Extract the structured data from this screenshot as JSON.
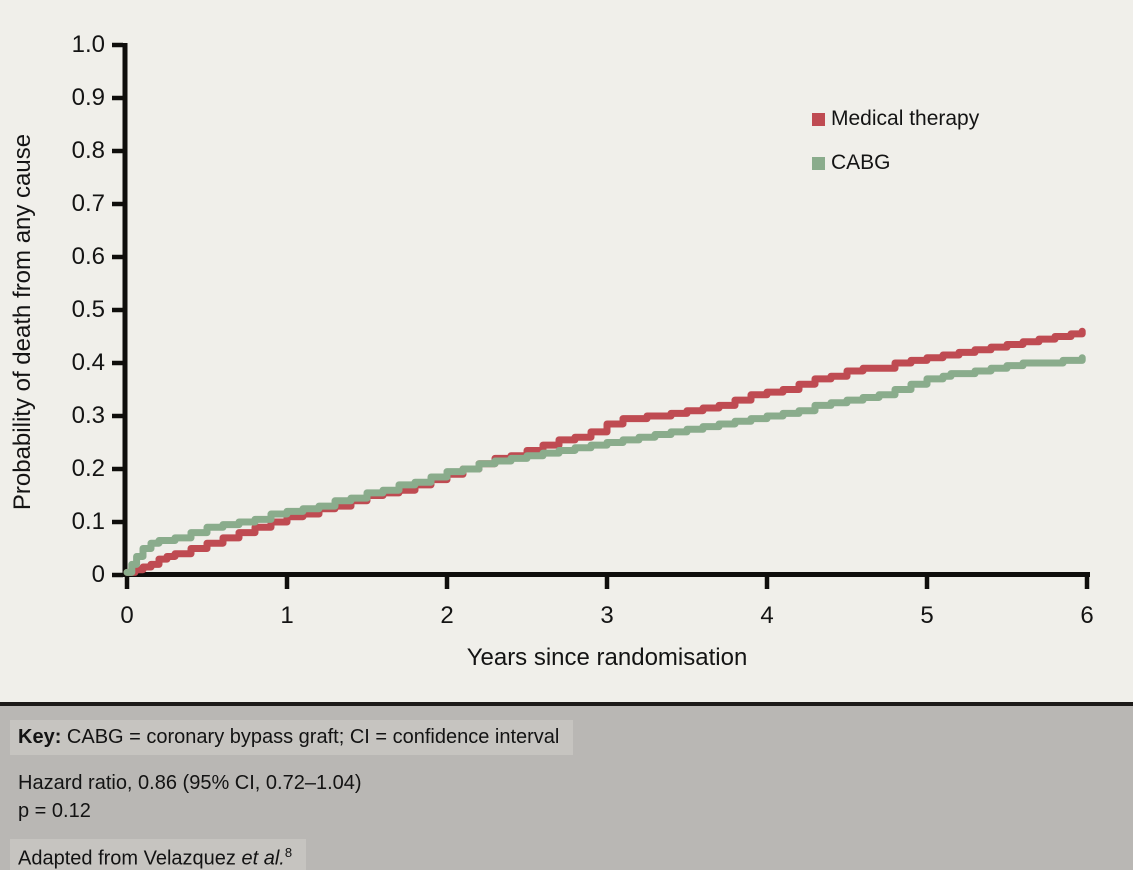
{
  "colors": {
    "background": "#f0efea",
    "footer_background": "#b9b7b4",
    "footer_highlight": "#c6c4c0",
    "divider": "#1c1a18",
    "axis": "#0f0e0c",
    "text": "#141414",
    "medical_therapy": "#bf4b52",
    "cabg": "#8aac8c"
  },
  "chart_data": {
    "type": "line",
    "subtype": "kaplan-meier-step",
    "title": "",
    "xlabel": "Years since randomisation",
    "ylabel": "Probability of death from any cause",
    "xlim": [
      0,
      6
    ],
    "ylim": [
      0,
      1.0
    ],
    "grid": false,
    "legend_position": "upper-right-inside",
    "xtick_labels": [
      "0",
      "1",
      "2",
      "3",
      "4",
      "5",
      "6"
    ],
    "xtick_values": [
      0,
      1,
      2,
      3,
      4,
      5,
      6
    ],
    "ytick_labels": [
      "1.0",
      "0.9",
      "0.8",
      "0.7",
      "0.6",
      "0.5",
      "0.4",
      "0.3",
      "0.2",
      "0.1",
      "0"
    ],
    "ytick_values": [
      1.0,
      0.9,
      0.8,
      0.7,
      0.6,
      0.5,
      0.4,
      0.3,
      0.2,
      0.1,
      0
    ],
    "series": [
      {
        "name": "Medical therapy",
        "color": "#bf4b52",
        "points": [
          [
            0,
            0.005
          ],
          [
            0.05,
            0.01
          ],
          [
            0.1,
            0.015
          ],
          [
            0.15,
            0.02
          ],
          [
            0.2,
            0.03
          ],
          [
            0.25,
            0.035
          ],
          [
            0.3,
            0.04
          ],
          [
            0.4,
            0.05
          ],
          [
            0.5,
            0.06
          ],
          [
            0.6,
            0.07
          ],
          [
            0.7,
            0.08
          ],
          [
            0.8,
            0.09
          ],
          [
            0.9,
            0.1
          ],
          [
            1.0,
            0.11
          ],
          [
            1.1,
            0.115
          ],
          [
            1.2,
            0.125
          ],
          [
            1.3,
            0.13
          ],
          [
            1.4,
            0.14
          ],
          [
            1.5,
            0.15
          ],
          [
            1.6,
            0.155
          ],
          [
            1.7,
            0.16
          ],
          [
            1.8,
            0.17
          ],
          [
            1.9,
            0.18
          ],
          [
            2.0,
            0.19
          ],
          [
            2.1,
            0.2
          ],
          [
            2.2,
            0.21
          ],
          [
            2.3,
            0.22
          ],
          [
            2.4,
            0.225
          ],
          [
            2.5,
            0.235
          ],
          [
            2.6,
            0.245
          ],
          [
            2.7,
            0.255
          ],
          [
            2.8,
            0.26
          ],
          [
            2.9,
            0.27
          ],
          [
            3.0,
            0.285
          ],
          [
            3.1,
            0.295
          ],
          [
            3.25,
            0.3
          ],
          [
            3.4,
            0.305
          ],
          [
            3.5,
            0.31
          ],
          [
            3.6,
            0.315
          ],
          [
            3.7,
            0.32
          ],
          [
            3.8,
            0.33
          ],
          [
            3.9,
            0.34
          ],
          [
            4.0,
            0.345
          ],
          [
            4.1,
            0.35
          ],
          [
            4.2,
            0.36
          ],
          [
            4.3,
            0.37
          ],
          [
            4.4,
            0.375
          ],
          [
            4.5,
            0.385
          ],
          [
            4.6,
            0.39
          ],
          [
            4.7,
            0.39
          ],
          [
            4.8,
            0.4
          ],
          [
            4.9,
            0.405
          ],
          [
            5.0,
            0.41
          ],
          [
            5.1,
            0.415
          ],
          [
            5.2,
            0.42
          ],
          [
            5.3,
            0.425
          ],
          [
            5.4,
            0.43
          ],
          [
            5.5,
            0.435
          ],
          [
            5.6,
            0.44
          ],
          [
            5.7,
            0.445
          ],
          [
            5.8,
            0.45
          ],
          [
            5.9,
            0.455
          ],
          [
            5.97,
            0.46
          ]
        ]
      },
      {
        "name": "CABG",
        "color": "#8aac8c",
        "points": [
          [
            0,
            0.005
          ],
          [
            0.03,
            0.02
          ],
          [
            0.06,
            0.035
          ],
          [
            0.1,
            0.05
          ],
          [
            0.15,
            0.06
          ],
          [
            0.2,
            0.065
          ],
          [
            0.3,
            0.07
          ],
          [
            0.4,
            0.08
          ],
          [
            0.5,
            0.09
          ],
          [
            0.6,
            0.095
          ],
          [
            0.7,
            0.1
          ],
          [
            0.8,
            0.105
          ],
          [
            0.9,
            0.115
          ],
          [
            1.0,
            0.12
          ],
          [
            1.1,
            0.125
          ],
          [
            1.2,
            0.13
          ],
          [
            1.3,
            0.14
          ],
          [
            1.4,
            0.145
          ],
          [
            1.5,
            0.155
          ],
          [
            1.6,
            0.16
          ],
          [
            1.7,
            0.17
          ],
          [
            1.8,
            0.175
          ],
          [
            1.9,
            0.185
          ],
          [
            2.0,
            0.195
          ],
          [
            2.1,
            0.2
          ],
          [
            2.2,
            0.21
          ],
          [
            2.3,
            0.215
          ],
          [
            2.4,
            0.22
          ],
          [
            2.5,
            0.225
          ],
          [
            2.6,
            0.23
          ],
          [
            2.7,
            0.235
          ],
          [
            2.8,
            0.24
          ],
          [
            2.9,
            0.245
          ],
          [
            3.0,
            0.25
          ],
          [
            3.1,
            0.255
          ],
          [
            3.2,
            0.26
          ],
          [
            3.3,
            0.265
          ],
          [
            3.4,
            0.27
          ],
          [
            3.5,
            0.275
          ],
          [
            3.6,
            0.28
          ],
          [
            3.7,
            0.285
          ],
          [
            3.8,
            0.29
          ],
          [
            3.9,
            0.295
          ],
          [
            4.0,
            0.3
          ],
          [
            4.1,
            0.305
          ],
          [
            4.2,
            0.31
          ],
          [
            4.3,
            0.32
          ],
          [
            4.4,
            0.325
          ],
          [
            4.5,
            0.33
          ],
          [
            4.6,
            0.335
          ],
          [
            4.7,
            0.34
          ],
          [
            4.8,
            0.35
          ],
          [
            4.9,
            0.36
          ],
          [
            5.0,
            0.37
          ],
          [
            5.1,
            0.375
          ],
          [
            5.15,
            0.38
          ],
          [
            5.3,
            0.385
          ],
          [
            5.4,
            0.39
          ],
          [
            5.5,
            0.395
          ],
          [
            5.6,
            0.4
          ],
          [
            5.75,
            0.4
          ],
          [
            5.85,
            0.405
          ],
          [
            5.97,
            0.41
          ]
        ]
      }
    ]
  },
  "footer": {
    "key_label": "Key:",
    "key_text": " CABG = coronary bypass graft; CI = confidence interval",
    "hazard_line": "Hazard ratio, 0.86 (95% CI, 0.72–1.04)",
    "p_line": "p = 0.12",
    "source_prefix": "Adapted from Velazquez ",
    "source_italic": "et al.",
    "source_superscript": "8"
  }
}
